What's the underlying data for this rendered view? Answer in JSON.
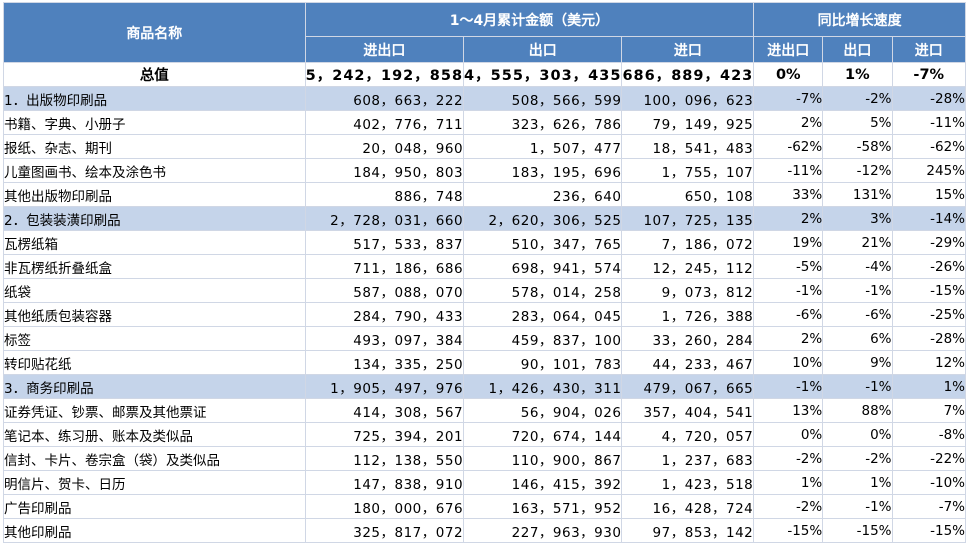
{
  "header": {
    "name": "商品名称",
    "group_amount": "1～4月累计金额（美元）",
    "group_growth": "同比增长速度",
    "sub": [
      "进出口",
      "出口",
      "进口",
      "进出口",
      "出口",
      "进口"
    ]
  },
  "rows": [
    {
      "name": "总值",
      "total": "5，242，192，858",
      "export": "4，555，303，435",
      "import": "686，889，423",
      "g_total": "0%",
      "g_export": "1%",
      "g_import": "-7%"
    },
    {
      "name": "1．出版物印刷品",
      "total": "608，663，222",
      "export": "508，566，599",
      "import": "100，096，623",
      "g_total": "-7%",
      "g_export": "-2%",
      "g_import": "-28%"
    },
    {
      "name": "书籍、字典、小册子",
      "total": "402，776，711",
      "export": "323，626，786",
      "import": "79，149，925",
      "g_total": "2%",
      "g_export": "5%",
      "g_import": "-11%"
    },
    {
      "name": "报纸、杂志、期刊",
      "total": "20，048，960",
      "export": "1，507，477",
      "import": "18，541，483",
      "g_total": "-62%",
      "g_export": "-58%",
      "g_import": "-62%"
    },
    {
      "name": "儿童图画书、绘本及涂色书",
      "total": "184，950，803",
      "export": "183，195，696",
      "import": "1，755，107",
      "g_total": "-11%",
      "g_export": "-12%",
      "g_import": "245%"
    },
    {
      "name": "其他出版物印刷品",
      "total": "886，748",
      "export": "236，640",
      "import": "650，108",
      "g_total": "33%",
      "g_export": "131%",
      "g_import": "15%"
    },
    {
      "name": "2．包装装潢印刷品",
      "total": "2，728，031，660",
      "export": "2，620，306，525",
      "import": "107，725，135",
      "g_total": "2%",
      "g_export": "3%",
      "g_import": "-14%"
    },
    {
      "name": "瓦楞纸箱",
      "total": "517，533，837",
      "export": "510，347，765",
      "import": "7，186，072",
      "g_total": "19%",
      "g_export": "21%",
      "g_import": "-29%"
    },
    {
      "name": "非瓦楞纸折叠纸盒",
      "total": "711，186，686",
      "export": "698，941，574",
      "import": "12，245，112",
      "g_total": "-5%",
      "g_export": "-4%",
      "g_import": "-26%"
    },
    {
      "name": "纸袋",
      "total": "587，088，070",
      "export": "578，014，258",
      "import": "9，073，812",
      "g_total": "-1%",
      "g_export": "-1%",
      "g_import": "-15%"
    },
    {
      "name": "其他纸质包装容器",
      "total": "284，790，433",
      "export": "283，064，045",
      "import": "1，726，388",
      "g_total": "-6%",
      "g_export": "-6%",
      "g_import": "-25%"
    },
    {
      "name": "标签",
      "total": "493，097，384",
      "export": "459，837，100",
      "import": "33，260，284",
      "g_total": "2%",
      "g_export": "6%",
      "g_import": "-28%"
    },
    {
      "name": "转印贴花纸",
      "total": "134，335，250",
      "export": "90，101，783",
      "import": "44，233，467",
      "g_total": "10%",
      "g_export": "9%",
      "g_import": "12%"
    },
    {
      "name": "3．商务印刷品",
      "total": "1，905，497，976",
      "export": "1，426，430，311",
      "import": "479，067，665",
      "g_total": "-1%",
      "g_export": "-1%",
      "g_import": "1%"
    },
    {
      "name": "证券凭证、钞票、邮票及其他票证",
      "total": "414，308，567",
      "export": "56，904，026",
      "import": "357，404，541",
      "g_total": "13%",
      "g_export": "88%",
      "g_import": "7%"
    },
    {
      "name": "笔记本、练习册、账本及类似品",
      "total": "725，394，201",
      "export": "720，674，144",
      "import": "4，720，057",
      "g_total": "0%",
      "g_export": "0%",
      "g_import": "-8%"
    },
    {
      "name": "信封、卡片、卷宗盒（袋）及类似品",
      "total": "112，138，550",
      "export": "110，900，867",
      "import": "1，237，683",
      "g_total": "-2%",
      "g_export": "-2%",
      "g_import": "-22%"
    },
    {
      "name": "明信片、贺卡、日历",
      "total": "147，838，910",
      "export": "146，415，392",
      "import": "1，423，518",
      "g_total": "1%",
      "g_export": "1%",
      "g_import": "-10%"
    },
    {
      "name": "广告印刷品",
      "total": "180，000，676",
      "export": "163，571，952",
      "import": "16，428，724",
      "g_total": "-2%",
      "g_export": "-1%",
      "g_import": "-7%"
    },
    {
      "name": "其他印刷品",
      "total": "325，817，072",
      "export": "227，963，930",
      "import": "97，853，142",
      "g_total": "-15%",
      "g_export": "-15%",
      "g_import": "-15%"
    }
  ]
}
